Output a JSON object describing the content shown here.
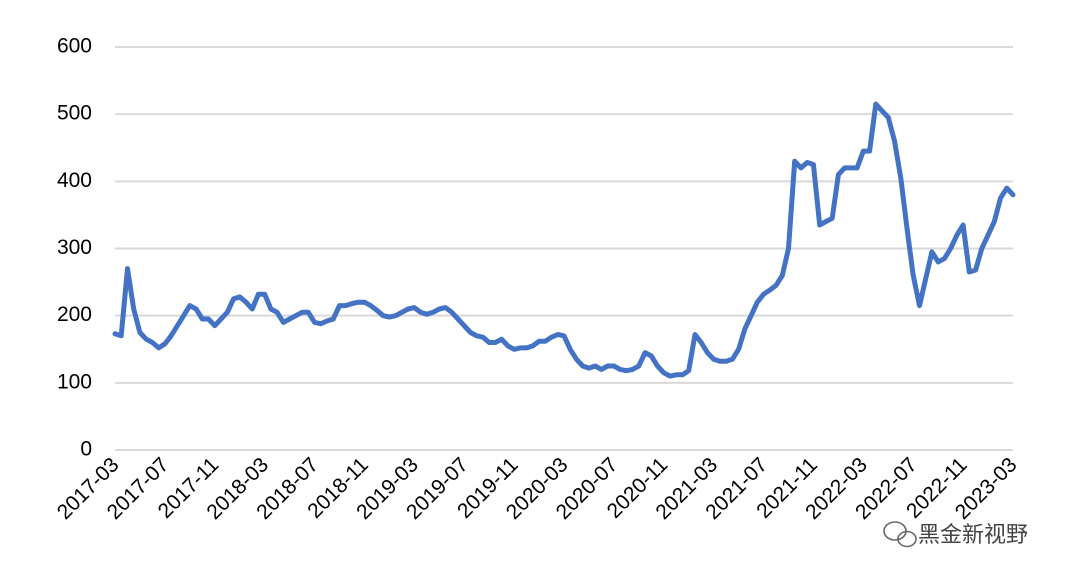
{
  "chart_data": {
    "type": "line",
    "categories": [
      "2017-03",
      null,
      null,
      null,
      null,
      null,
      null,
      null,
      "2017-07",
      null,
      null,
      null,
      null,
      null,
      null,
      null,
      "2017-11",
      null,
      null,
      null,
      null,
      null,
      null,
      null,
      "2018-03",
      null,
      null,
      null,
      null,
      null,
      null,
      null,
      "2018-07",
      null,
      null,
      null,
      null,
      null,
      null,
      null,
      "2018-11",
      null,
      null,
      null,
      null,
      null,
      null,
      null,
      "2019-03",
      null,
      null,
      null,
      null,
      null,
      null,
      null,
      "2019-07",
      null,
      null,
      null,
      null,
      null,
      null,
      null,
      "2019-11",
      null,
      null,
      null,
      null,
      null,
      null,
      null,
      "2020-03",
      null,
      null,
      null,
      null,
      null,
      null,
      null,
      "2020-07",
      null,
      null,
      null,
      null,
      null,
      null,
      null,
      "2020-11",
      null,
      null,
      null,
      null,
      null,
      null,
      null,
      "2021-03",
      null,
      null,
      null,
      null,
      null,
      null,
      null,
      "2021-07",
      null,
      null,
      null,
      null,
      null,
      null,
      null,
      "2021-11",
      null,
      null,
      null,
      null,
      null,
      null,
      null,
      "2022-03",
      null,
      null,
      null,
      null,
      null,
      null,
      null,
      "2022-07",
      null,
      null,
      null,
      null,
      null,
      null,
      null,
      "2022-11",
      null,
      null,
      null,
      null,
      null,
      null,
      null,
      "2023-03"
    ],
    "series": [
      {
        "color": "#4472c4",
        "values": [
          173,
          170,
          270,
          210,
          175,
          165,
          160,
          152,
          158,
          170,
          185,
          200,
          215,
          210,
          195,
          195,
          185,
          195,
          205,
          225,
          228,
          220,
          210,
          232,
          232,
          210,
          205,
          190,
          195,
          200,
          205,
          205,
          190,
          188,
          192,
          195,
          215,
          215,
          218,
          220,
          220,
          215,
          208,
          200,
          198,
          200,
          205,
          210,
          212,
          205,
          202,
          205,
          210,
          212,
          205,
          195,
          185,
          175,
          170,
          168,
          160,
          160,
          165,
          155,
          150,
          152,
          152,
          155,
          162,
          162,
          168,
          172,
          170,
          150,
          135,
          125,
          122,
          125,
          120,
          125,
          125,
          120,
          118,
          120,
          125,
          145,
          140,
          125,
          115,
          110,
          112,
          112,
          118,
          172,
          160,
          145,
          135,
          132,
          132,
          135,
          150,
          180,
          200,
          220,
          232,
          238,
          245,
          260,
          300,
          430,
          420,
          428,
          425,
          335,
          340,
          345,
          410,
          420,
          420,
          420,
          445,
          445,
          515,
          505,
          495,
          460,
          405,
          330,
          260,
          215,
          255,
          295,
          280,
          285,
          300,
          320,
          335,
          265,
          268,
          300,
          320,
          340,
          375,
          390,
          380
        ]
      }
    ],
    "ylim": [
      0,
      600
    ],
    "yticks": [
      0,
      100,
      200,
      300,
      400,
      500,
      600
    ],
    "grid": true
  },
  "watermark": "黑金新视野"
}
